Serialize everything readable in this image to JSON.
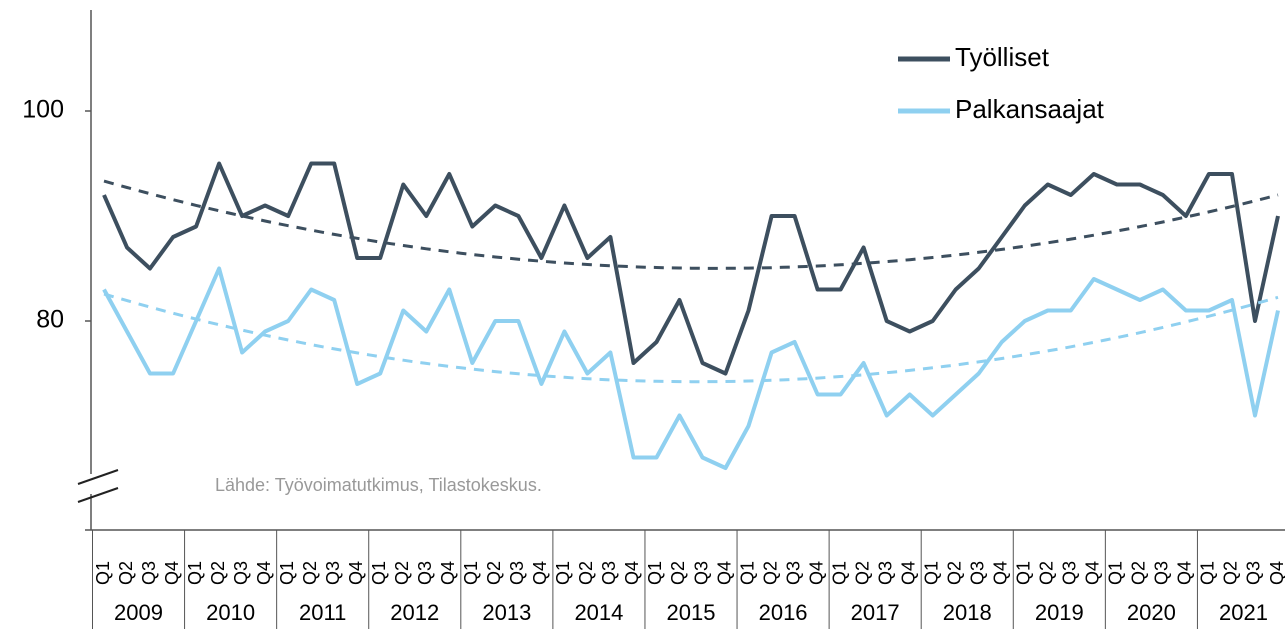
{
  "chart_data": {
    "type": "line",
    "categories": [
      "Q1",
      "Q2",
      "Q3",
      "Q4",
      "Q1",
      "Q2",
      "Q3",
      "Q4",
      "Q1",
      "Q2",
      "Q3",
      "Q4",
      "Q1",
      "Q2",
      "Q3",
      "Q4",
      "Q1",
      "Q2",
      "Q3",
      "Q4",
      "Q1",
      "Q2",
      "Q3",
      "Q4",
      "Q1",
      "Q2",
      "Q3",
      "Q4",
      "Q1",
      "Q2",
      "Q3",
      "Q4",
      "Q1",
      "Q2",
      "Q3",
      "Q4",
      "Q1",
      "Q2",
      "Q3",
      "Q4",
      "Q1",
      "Q2",
      "Q3",
      "Q4",
      "Q1",
      "Q2",
      "Q3",
      "Q4",
      "Q1",
      "Q2",
      "Q3",
      "Q4"
    ],
    "years": [
      "2009",
      "2010",
      "2011",
      "2012",
      "2013",
      "2014",
      "2015",
      "2016",
      "2017",
      "2018",
      "2019",
      "2020",
      "2021"
    ],
    "series": [
      {
        "name": "Työlliset",
        "color": "#3d4f5f",
        "values": [
          92,
          87,
          85,
          88,
          89,
          95,
          90,
          91,
          90,
          95,
          95,
          86,
          86,
          93,
          90,
          94,
          89,
          91,
          90,
          86,
          91,
          86,
          88,
          76,
          78,
          82,
          76,
          75,
          81,
          90,
          90,
          83,
          83,
          87,
          80,
          79,
          80,
          83,
          85,
          88,
          91,
          93,
          92,
          94,
          93,
          93,
          92,
          90,
          94,
          94,
          80,
          90
        ]
      },
      {
        "name": "Palkansaajat",
        "color": "#8fd0f0",
        "values": [
          83,
          79,
          75,
          75,
          80,
          85,
          77,
          79,
          80,
          83,
          82,
          74,
          75,
          81,
          79,
          83,
          76,
          80,
          80,
          74,
          79,
          75,
          77,
          67,
          67,
          71,
          67,
          66,
          70,
          77,
          78,
          73,
          73,
          76,
          71,
          73,
          71,
          73,
          75,
          78,
          80,
          81,
          81,
          84,
          83,
          82,
          83,
          81,
          81,
          82,
          71,
          81
        ]
      }
    ],
    "trendline": "quadratic",
    "ylim": [
      60,
      110
    ],
    "yticks": [
      80,
      100
    ],
    "legend": "top-right",
    "source": "Lähde: Työvoimatutkimus, Tilastokeskus."
  }
}
